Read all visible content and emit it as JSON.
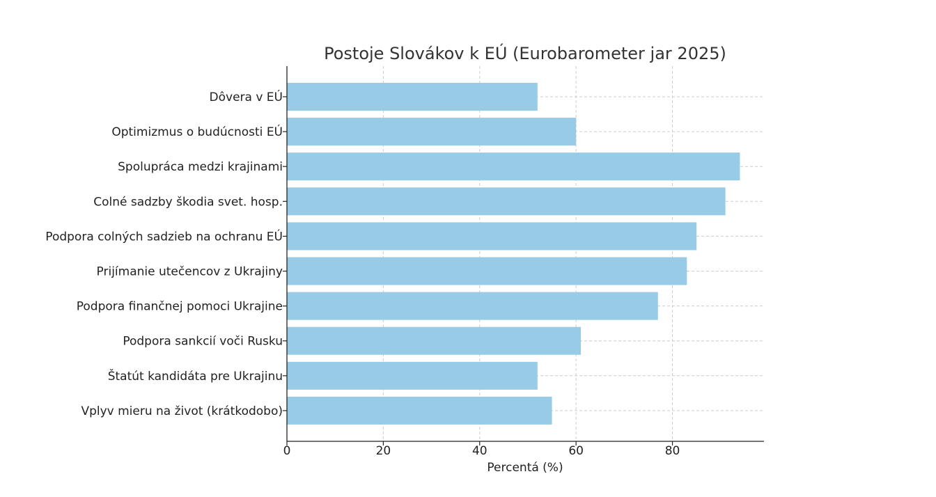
{
  "chart_data": {
    "type": "bar",
    "orientation": "horizontal",
    "title": "Postoje Slovákov k EÚ (Eurobarometer jar 2025)",
    "xlabel": "Percentá (%)",
    "ylabel": "",
    "categories": [
      "Dôvera v EÚ",
      "Optimizmus o budúcnosti EÚ",
      "Spolupráca medzi krajinami",
      "Colné sadzby škodia svet. hosp.",
      "Podpora colných sadzieb na ochranu EÚ",
      "Prijímanie utečencov z Ukrajiny",
      "Podpora finančnej pomoci Ukrajine",
      "Podpora sankcií voči Rusku",
      "Štatút kandidáta pre Ukrajinu",
      "Vplyv mieru na život (krátkodobo)"
    ],
    "values": [
      52,
      60,
      94,
      91,
      85,
      83,
      77,
      61,
      52,
      55
    ],
    "xlim": [
      0,
      99
    ],
    "xticks": [
      "0",
      "20",
      "40",
      "60",
      "80"
    ],
    "grid": true,
    "bar_color": "#97cbe6"
  }
}
